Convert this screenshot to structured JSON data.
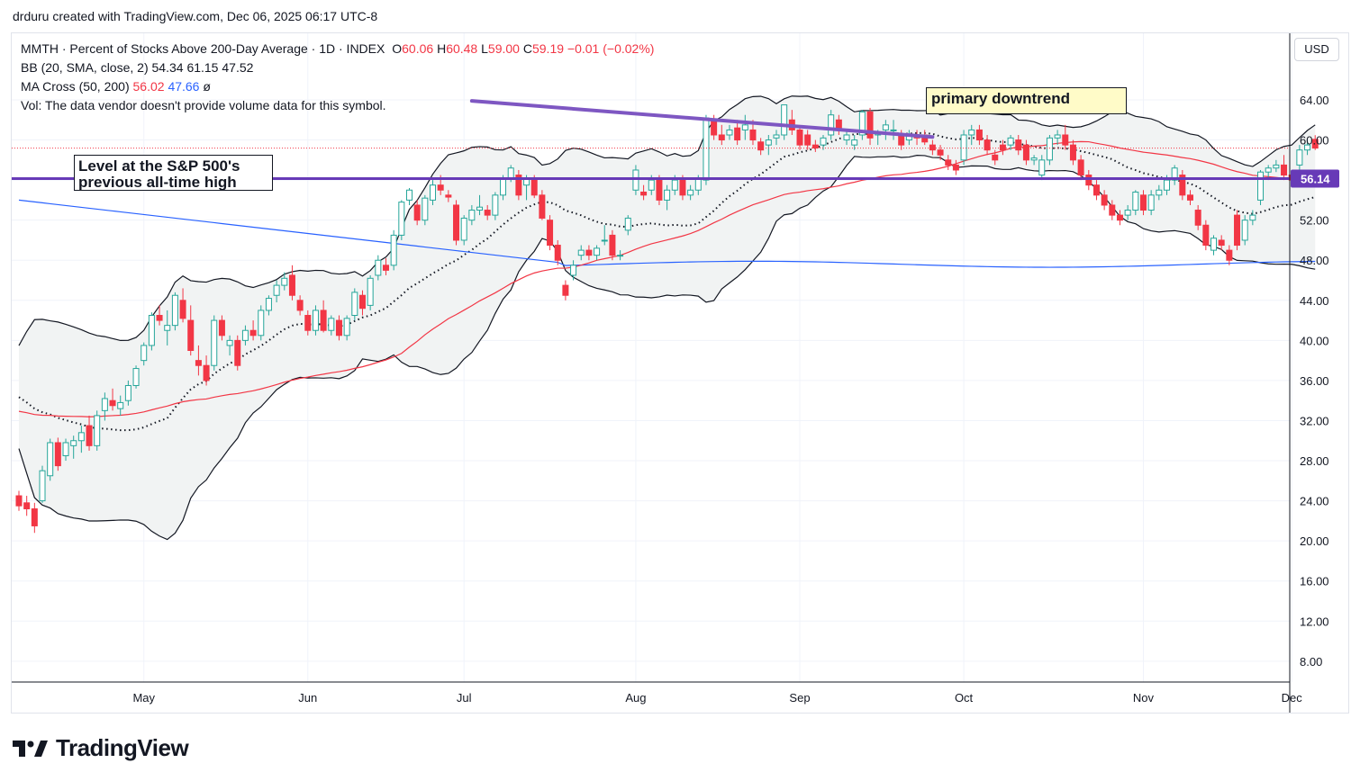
{
  "header": {
    "credit": "drduru created with TradingView.com, Dec 06, 2025 06:17 UTC-8"
  },
  "legend": {
    "symbol_line": "MMTH · Percent of Stocks Above 200-Day Average · 1D · INDEX",
    "o_label": "O",
    "o_val": "60.06",
    "h_label": "H",
    "h_val": "60.48",
    "l_label": "L",
    "l_val": "59.00",
    "c_label": "C",
    "c_val": "59.19",
    "change": "−0.01 (−0.02%)",
    "bb_label": "BB (20, SMA, close, 2)",
    "bb_vals": [
      "54.34",
      "61.15",
      "47.52"
    ],
    "ma_label": "MA Cross (50, 200)",
    "ma_vals": [
      "56.02",
      "47.66"
    ],
    "ma_null": "ø",
    "vol_line": "Vol: The data vendor doesn't provide volume data for this symbol."
  },
  "currency": "USD",
  "annotations": {
    "downtrend": "primary downtrend",
    "level_line1": "Level at the S&P 500's",
    "level_line2": "previous all-time high"
  },
  "brand": {
    "name": "TradingView"
  },
  "colors": {
    "up": "#26a69a",
    "down": "#f23645",
    "ma50": "#f23645",
    "ma200": "#2962ff",
    "level_line": "#673ab7",
    "bb_fill": "#f1f3f3",
    "bb_line": "#131722"
  },
  "chart_data": {
    "type": "candlestick",
    "ylim": [
      6,
      67
    ],
    "yticks": [
      8,
      12,
      16,
      20,
      24,
      28,
      32,
      36,
      40,
      44,
      48,
      52,
      56,
      60,
      64
    ],
    "ytick_labels": [
      "8.00",
      "12.00",
      "16.00",
      "20.00",
      "24.00",
      "28.00",
      "32.00",
      "36.00",
      "40.00",
      "44.00",
      "48.00",
      "52.00",
      "56.00",
      "60.00",
      "64.00"
    ],
    "x_labels": [
      {
        "label": "May",
        "day": 16
      },
      {
        "label": "Jun",
        "day": 37
      },
      {
        "label": "Jul",
        "day": 57
      },
      {
        "label": "Aug",
        "day": 79
      },
      {
        "label": "Sep",
        "day": 100
      },
      {
        "label": "Oct",
        "day": 121
      },
      {
        "label": "Nov",
        "day": 144
      },
      {
        "label": "Dec",
        "day": 163
      }
    ],
    "level_value": 56.14,
    "level_label": "56.14",
    "last_close": 59.19,
    "downtrend_line": [
      [
        58,
        63.9
      ],
      [
        117,
        60.3
      ]
    ],
    "candles": [
      [
        24.5,
        25.0,
        23.0,
        23.5
      ],
      [
        23.8,
        24.5,
        22.5,
        23.2
      ],
      [
        23.2,
        23.8,
        20.8,
        21.5
      ],
      [
        24.0,
        27.5,
        23.8,
        27.0
      ],
      [
        26.5,
        30.2,
        26.0,
        29.8
      ],
      [
        29.8,
        30.3,
        27.0,
        27.5
      ],
      [
        28.5,
        30.2,
        28.0,
        29.8
      ],
      [
        29.5,
        30.5,
        28.2,
        30.0
      ],
      [
        30.0,
        31.5,
        28.8,
        30.8
      ],
      [
        31.5,
        32.5,
        29.0,
        29.5
      ],
      [
        29.5,
        33.0,
        29.0,
        32.5
      ],
      [
        33.0,
        34.8,
        32.0,
        34.2
      ],
      [
        34.0,
        35.2,
        33.0,
        33.5
      ],
      [
        33.2,
        34.5,
        32.5,
        33.8
      ],
      [
        34.0,
        36.0,
        33.5,
        35.5
      ],
      [
        35.5,
        37.5,
        35.2,
        37.2
      ],
      [
        38.0,
        39.8,
        37.5,
        39.5
      ],
      [
        39.5,
        42.8,
        39.0,
        42.5
      ],
      [
        42.5,
        43.5,
        41.5,
        42.0
      ],
      [
        41.0,
        43.0,
        39.5,
        41.5
      ],
      [
        41.5,
        44.8,
        41.0,
        44.5
      ],
      [
        44.0,
        45.2,
        41.8,
        42.2
      ],
      [
        42.0,
        43.5,
        38.5,
        39.0
      ],
      [
        38.0,
        39.5,
        36.5,
        37.5
      ],
      [
        37.5,
        38.5,
        35.5,
        36.0
      ],
      [
        37.5,
        42.5,
        37.0,
        42.0
      ],
      [
        42.0,
        42.5,
        40.0,
        40.5
      ],
      [
        39.5,
        40.5,
        38.5,
        40.0
      ],
      [
        40.0,
        40.5,
        37.0,
        37.5
      ],
      [
        40.0,
        41.5,
        39.5,
        41.0
      ],
      [
        41.0,
        42.0,
        40.0,
        40.5
      ],
      [
        40.5,
        43.5,
        40.0,
        43.0
      ],
      [
        43.0,
        44.5,
        42.5,
        44.2
      ],
      [
        44.5,
        46.0,
        43.8,
        45.5
      ],
      [
        45.5,
        46.8,
        45.0,
        46.2
      ],
      [
        46.5,
        47.5,
        44.0,
        44.5
      ],
      [
        44.0,
        44.5,
        42.5,
        43.0
      ],
      [
        42.5,
        43.0,
        40.5,
        41.0
      ],
      [
        41.0,
        43.5,
        40.5,
        43.0
      ],
      [
        43.0,
        44.0,
        40.8,
        41.0
      ],
      [
        41.0,
        42.5,
        40.5,
        42.2
      ],
      [
        42.0,
        42.5,
        40.0,
        40.5
      ],
      [
        40.5,
        42.5,
        40.0,
        42.2
      ],
      [
        42.5,
        45.2,
        42.0,
        44.8
      ],
      [
        44.5,
        45.0,
        42.5,
        43.2
      ],
      [
        43.5,
        46.5,
        43.0,
        46.2
      ],
      [
        46.5,
        48.5,
        46.0,
        48.0
      ],
      [
        47.5,
        48.2,
        46.5,
        47.0
      ],
      [
        47.5,
        51.0,
        47.0,
        50.5
      ],
      [
        50.5,
        54.0,
        50.0,
        53.8
      ],
      [
        54.0,
        55.2,
        53.5,
        55.0
      ],
      [
        53.5,
        54.0,
        51.5,
        52.0
      ],
      [
        52.0,
        54.5,
        51.5,
        54.2
      ],
      [
        54.0,
        56.0,
        53.5,
        55.5
      ],
      [
        55.5,
        56.5,
        54.5,
        55.0
      ],
      [
        54.5,
        55.0,
        53.8,
        54.3
      ],
      [
        53.5,
        54.0,
        49.5,
        50.0
      ],
      [
        50.0,
        52.5,
        49.5,
        52.2
      ],
      [
        52.0,
        53.5,
        51.5,
        53.0
      ],
      [
        53.0,
        54.5,
        52.5,
        53.3
      ],
      [
        53.0,
        53.5,
        52.0,
        52.5
      ],
      [
        52.5,
        54.8,
        52.0,
        54.5
      ],
      [
        54.5,
        56.5,
        54.0,
        56.2
      ],
      [
        56.2,
        57.5,
        55.8,
        57.2
      ],
      [
        56.5,
        57.0,
        54.0,
        54.5
      ],
      [
        55.5,
        56.5,
        54.0,
        56.2
      ],
      [
        56.0,
        56.5,
        54.2,
        54.5
      ],
      [
        54.5,
        55.0,
        52.0,
        52.2
      ],
      [
        52.0,
        52.5,
        49.0,
        49.5
      ],
      [
        49.5,
        50.0,
        47.5,
        48.0
      ],
      [
        45.5,
        46.0,
        44.0,
        44.5
      ],
      [
        46.5,
        48.0,
        46.0,
        47.5
      ],
      [
        48.5,
        49.5,
        48.0,
        49.0
      ],
      [
        49.0,
        49.5,
        48.0,
        48.5
      ],
      [
        48.5,
        49.5,
        48.0,
        49.2
      ],
      [
        50.0,
        51.5,
        49.5,
        50.0
      ],
      [
        50.5,
        51.0,
        48.0,
        48.5
      ],
      [
        48.5,
        49.0,
        48.0,
        48.5
      ],
      [
        51.0,
        52.5,
        50.5,
        52.2
      ],
      [
        55.0,
        57.5,
        54.5,
        57.0
      ],
      [
        54.8,
        55.5,
        54.0,
        54.5
      ],
      [
        55.0,
        56.5,
        54.5,
        56.0
      ],
      [
        56.0,
        56.5,
        53.5,
        54.0
      ],
      [
        54.0,
        55.5,
        53.0,
        55.0
      ],
      [
        55.0,
        56.5,
        54.5,
        56.0
      ],
      [
        56.0,
        56.5,
        54.0,
        54.5
      ],
      [
        54.5,
        55.5,
        54.0,
        55.0
      ],
      [
        55.0,
        56.5,
        54.5,
        56.2
      ],
      [
        56.0,
        62.5,
        55.5,
        62.2
      ],
      [
        62.0,
        62.5,
        60.0,
        60.5
      ],
      [
        60.5,
        61.5,
        59.5,
        60.0
      ],
      [
        60.5,
        61.5,
        60.0,
        61.0
      ],
      [
        61.2,
        62.0,
        59.5,
        60.0
      ],
      [
        61.0,
        62.5,
        60.0,
        61.5
      ],
      [
        61.0,
        62.0,
        59.5,
        60.0
      ],
      [
        59.8,
        60.2,
        58.5,
        59.0
      ],
      [
        59.5,
        60.5,
        58.5,
        60.0
      ],
      [
        60.2,
        61.0,
        59.5,
        60.5
      ],
      [
        60.5,
        63.5,
        60.0,
        63.5
      ],
      [
        62.0,
        63.0,
        60.5,
        61.0
      ],
      [
        61.0,
        61.5,
        59.0,
        59.5
      ],
      [
        60.5,
        61.0,
        59.0,
        59.5
      ],
      [
        59.5,
        60.0,
        58.8,
        59.2
      ],
      [
        59.5,
        60.5,
        59.0,
        60.2
      ],
      [
        60.5,
        63.0,
        60.0,
        62.5
      ],
      [
        62.0,
        62.5,
        60.5,
        61.0
      ],
      [
        60.0,
        61.0,
        59.5,
        60.5
      ],
      [
        59.5,
        60.5,
        59.0,
        60.0
      ],
      [
        60.5,
        63.0,
        60.0,
        62.8
      ],
      [
        62.8,
        63.2,
        59.5,
        60.2
      ],
      [
        60.5,
        61.0,
        59.5,
        60.8
      ],
      [
        61.0,
        62.0,
        60.0,
        61.5
      ],
      [
        61.0,
        62.0,
        60.0,
        61.0
      ],
      [
        60.5,
        61.0,
        59.0,
        59.5
      ],
      [
        60.0,
        61.0,
        59.5,
        60.5
      ],
      [
        60.5,
        61.0,
        59.5,
        60.2
      ],
      [
        60.5,
        61.0,
        59.5,
        59.8
      ],
      [
        59.5,
        60.0,
        58.5,
        59.0
      ],
      [
        59.0,
        59.5,
        58.0,
        58.5
      ],
      [
        58.0,
        58.5,
        57.0,
        57.5
      ],
      [
        57.5,
        58.0,
        56.5,
        57.0
      ],
      [
        58.0,
        61.0,
        57.5,
        60.5
      ],
      [
        60.5,
        61.5,
        59.5,
        61.0
      ],
      [
        61.0,
        61.5,
        59.5,
        60.0
      ],
      [
        60.0,
        60.5,
        58.5,
        59.0
      ],
      [
        58.5,
        59.0,
        57.5,
        58.0
      ],
      [
        59.5,
        60.0,
        58.5,
        59.0
      ],
      [
        59.5,
        60.5,
        59.0,
        60.2
      ],
      [
        60.0,
        60.5,
        58.5,
        59.0
      ],
      [
        59.5,
        60.0,
        57.5,
        58.0
      ],
      [
        58.0,
        58.5,
        57.5,
        58.2
      ],
      [
        56.5,
        58.5,
        56.0,
        58.0
      ],
      [
        58.0,
        60.5,
        57.5,
        60.2
      ],
      [
        60.2,
        61.0,
        59.5,
        60.5
      ],
      [
        60.5,
        61.5,
        59.0,
        59.5
      ],
      [
        59.5,
        60.0,
        57.5,
        58.0
      ],
      [
        58.0,
        58.5,
        56.0,
        56.5
      ],
      [
        56.5,
        57.0,
        55.0,
        55.5
      ],
      [
        55.5,
        56.0,
        54.0,
        54.5
      ],
      [
        54.5,
        55.0,
        53.0,
        53.5
      ],
      [
        53.5,
        54.0,
        52.0,
        52.5
      ],
      [
        52.5,
        53.0,
        51.5,
        52.0
      ],
      [
        52.5,
        53.5,
        52.0,
        53.0
      ],
      [
        53.0,
        55.0,
        52.5,
        54.8
      ],
      [
        54.5,
        55.0,
        52.5,
        53.0
      ],
      [
        53.0,
        55.0,
        52.5,
        54.5
      ],
      [
        54.5,
        55.5,
        54.0,
        55.0
      ],
      [
        55.0,
        56.5,
        54.5,
        56.0
      ],
      [
        56.0,
        57.5,
        55.5,
        57.2
      ],
      [
        56.5,
        57.0,
        54.0,
        54.5
      ],
      [
        54.5,
        55.0,
        53.5,
        54.0
      ],
      [
        53.0,
        53.5,
        51.0,
        51.5
      ],
      [
        51.5,
        52.0,
        49.0,
        49.5
      ],
      [
        49.0,
        50.5,
        48.5,
        50.2
      ],
      [
        50.0,
        50.5,
        49.0,
        49.5
      ],
      [
        49.0,
        49.5,
        47.5,
        48.0
      ],
      [
        52.5,
        53.0,
        49.0,
        49.5
      ],
      [
        50.0,
        52.5,
        49.5,
        52.0
      ],
      [
        52.0,
        53.0,
        51.5,
        52.5
      ],
      [
        54.0,
        57.0,
        53.5,
        56.8
      ],
      [
        56.8,
        57.5,
        56.0,
        57.2
      ],
      [
        57.2,
        58.0,
        56.8,
        57.5
      ],
      [
        57.5,
        58.5,
        56.0,
        56.5
      ],
      [
        56.5,
        57.0,
        55.5,
        56.0
      ],
      [
        57.5,
        59.5,
        57.0,
        59.0
      ],
      [
        59.0,
        60.0,
        58.5,
        59.5
      ],
      [
        60.06,
        60.48,
        59.0,
        59.19
      ]
    ]
  }
}
